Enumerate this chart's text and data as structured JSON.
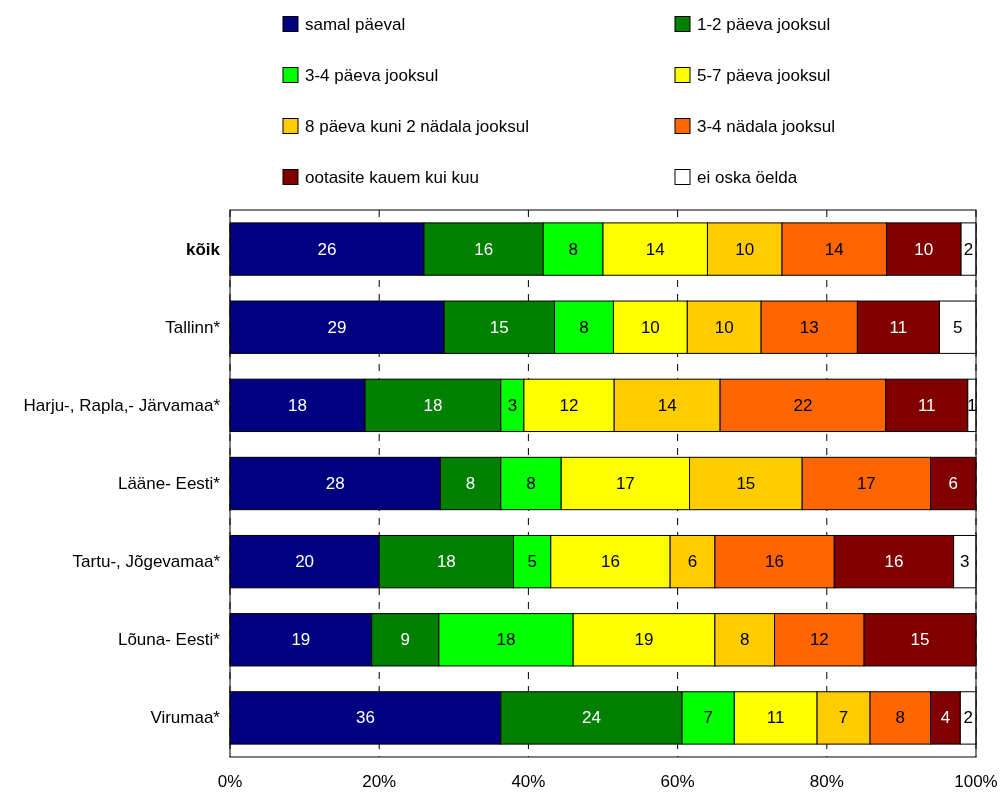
{
  "chart_data": {
    "type": "bar",
    "orientation": "horizontal",
    "stacked": true,
    "categories": [
      "kõik",
      "Tallinn*",
      "Harju-, Rapla,- Järvamaa*",
      "Lääne- Eesti*",
      "Tartu-, Jõgevamaa*",
      "Lõuna- Eesti*",
      "Virumaa*"
    ],
    "series": [
      {
        "name": "samal päeval",
        "color": "#000080",
        "values": [
          26,
          28.7,
          18.1,
          28.2,
          20,
          19,
          36.3
        ],
        "value_labels": [
          "26",
          "29",
          "18",
          "28",
          "20",
          "19",
          "36"
        ]
      },
      {
        "name": "1-2 päeva jooksul",
        "color": "#008000",
        "values": [
          16,
          14.8,
          18.2,
          8.1,
          18,
          9,
          24.3
        ],
        "value_labels": [
          "16",
          "15",
          "18",
          "8",
          "18",
          "9",
          "24"
        ]
      },
      {
        "name": "3-4 päeva jooksul",
        "color": "#00ff00",
        "values": [
          8,
          7.9,
          3.1,
          8.1,
          5,
          18,
          7.0
        ],
        "value_labels": [
          "8",
          "8",
          "3",
          "8",
          "5",
          "18",
          "7"
        ]
      },
      {
        "name": "5-7 päeva jooksul",
        "color": "#ffff00",
        "values": [
          14,
          9.9,
          12.1,
          17.2,
          16,
          19,
          11.1
        ],
        "value_labels": [
          "14",
          "10",
          "12",
          "17",
          "16",
          "19",
          "11"
        ]
      },
      {
        "name": "8 päeva kuni 2 nädala jooksul",
        "color": "#ffcc00",
        "values": [
          10,
          9.9,
          14.2,
          15.1,
          6,
          8,
          7.1
        ],
        "value_labels": [
          "10",
          "10",
          "14",
          "15",
          "6",
          "8",
          "7"
        ]
      },
      {
        "name": "3-4 nädala jooksul",
        "color": "#ff6600",
        "values": [
          14,
          12.9,
          22.2,
          17.2,
          16,
          12,
          8.1
        ],
        "value_labels": [
          "14",
          "13",
          "22",
          "17",
          "16",
          "12",
          "8"
        ]
      },
      {
        "name": "ootasite kauem kui kuu",
        "color": "#800000",
        "values": [
          10,
          11.0,
          11.0,
          6.1,
          16,
          15,
          4.0
        ],
        "value_labels": [
          "10",
          "11",
          "11",
          "6",
          "16",
          "15",
          "4"
        ]
      },
      {
        "name": "ei oska öelda",
        "color": "#ffffff",
        "values": [
          2,
          4.9,
          1.1,
          null,
          3,
          null,
          2.1
        ],
        "value_labels": [
          "2",
          "5",
          "1",
          null,
          "3",
          null,
          "2"
        ]
      }
    ],
    "xlim": [
      0,
      100
    ],
    "xticks": [
      {
        "value": 0,
        "label": "0%"
      },
      {
        "value": 20,
        "label": "20%"
      },
      {
        "value": 40,
        "label": "40%"
      },
      {
        "value": 60,
        "label": "60%"
      },
      {
        "value": 80,
        "label": "80%"
      },
      {
        "value": 100,
        "label": "100%"
      }
    ],
    "grid": "x",
    "legend": "top"
  }
}
